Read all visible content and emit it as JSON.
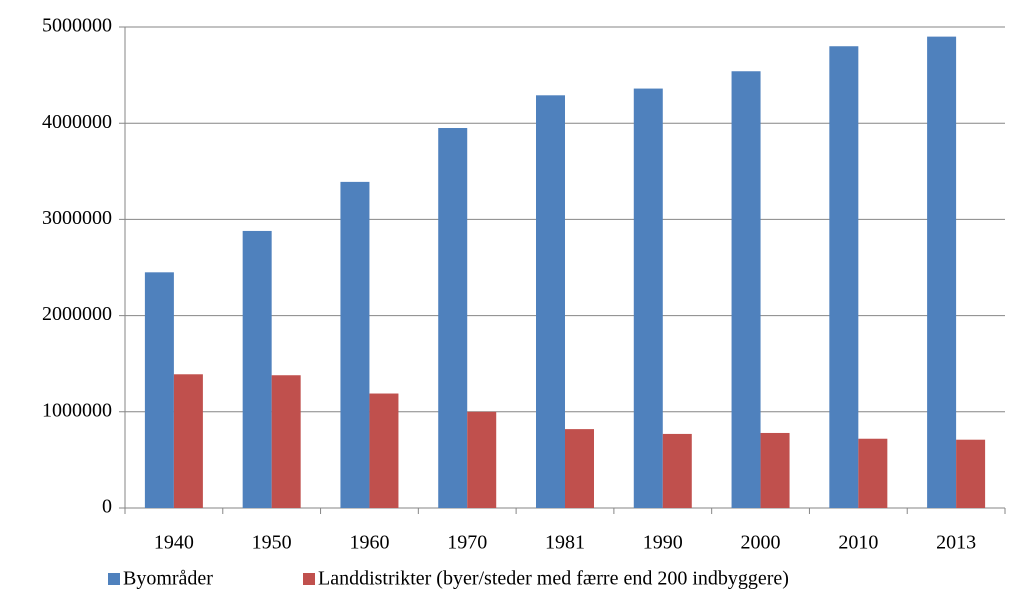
{
  "chart_data": {
    "type": "bar",
    "categories": [
      "1940",
      "1950",
      "1960",
      "1970",
      "1981",
      "1990",
      "2000",
      "2010",
      "2013"
    ],
    "series": [
      {
        "name": "Byområder",
        "color": "#4f81bd",
        "values": [
          2450000,
          2880000,
          3390000,
          3950000,
          4290000,
          4360000,
          4540000,
          4800000,
          4900000
        ]
      },
      {
        "name": "Landdistrikter (byer/steder med færre end 200 indbyggere)",
        "color": "#c0504d",
        "values": [
          1390000,
          1380000,
          1190000,
          1000000,
          820000,
          770000,
          780000,
          720000,
          710000
        ]
      }
    ],
    "ylim": [
      0,
      5000000
    ],
    "yticks": [
      0,
      1000000,
      2000000,
      3000000,
      4000000,
      5000000
    ],
    "grid": true,
    "legend": "bottom"
  }
}
